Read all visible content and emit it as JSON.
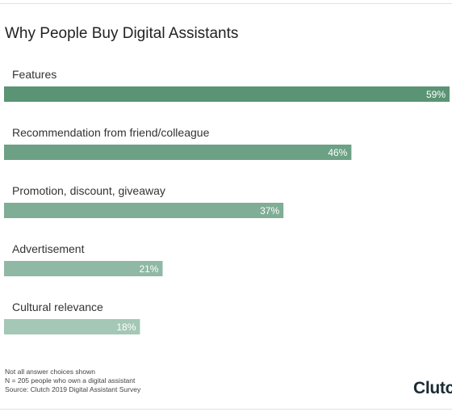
{
  "chart_data": {
    "type": "bar",
    "orientation": "horizontal",
    "title": "Why People Buy Digital Assistants",
    "categories": [
      "Features",
      "Recommendation from friend/colleague",
      "Promotion, discount, giveaway",
      "Advertisement",
      "Cultural relevance"
    ],
    "values": [
      59,
      46,
      37,
      21,
      18
    ],
    "value_labels": [
      "59%",
      "46%",
      "37%",
      "21%",
      "18%"
    ],
    "unit": "%",
    "colors": [
      "#5a9474",
      "#6da185",
      "#7fad95",
      "#8fb9a4",
      "#a4c7b6"
    ],
    "grid": false,
    "legend": "none"
  },
  "notes": [
    "Not all answer choices shown",
    "N = 205 people who own a digital assistant",
    "Source: Clutch 2019 Digital Assistant Survey"
  ],
  "brand": {
    "logo_text": "Clutch"
  }
}
